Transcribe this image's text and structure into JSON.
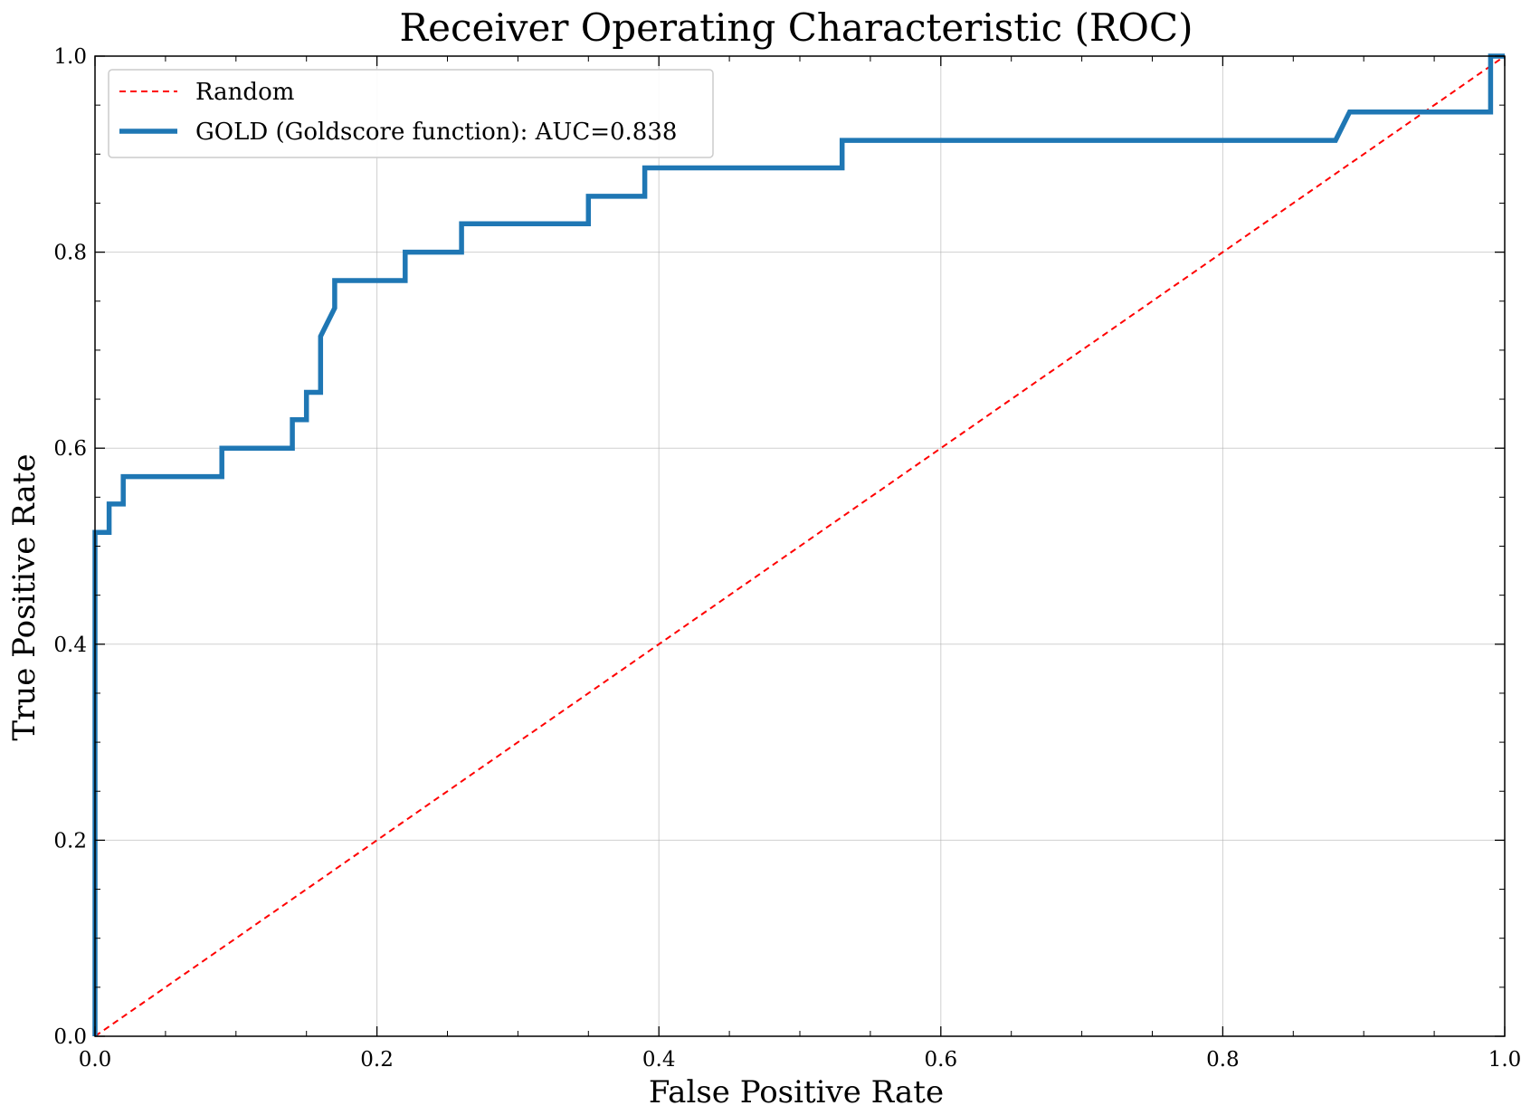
{
  "chart_data": {
    "type": "line",
    "title": "Receiver Operating Characteristic (ROC)",
    "xlabel": "False Positive Rate",
    "ylabel": "True Positive Rate",
    "xlim": [
      0,
      1
    ],
    "ylim": [
      0,
      1
    ],
    "x_ticks": [
      "0.0",
      "0.2",
      "0.4",
      "0.6",
      "0.8",
      "1.0"
    ],
    "y_ticks": [
      "0.0",
      "0.2",
      "0.4",
      "0.6",
      "0.8",
      "1.0"
    ],
    "grid": true,
    "legend_position": "top-left",
    "series": [
      {
        "name": "Random",
        "color": "#ff0000",
        "style": "dashed",
        "x": [
          0,
          1
        ],
        "y": [
          0,
          1
        ]
      },
      {
        "name": "GOLD (Goldscore function): AUC=0.838",
        "color": "#1f77b4",
        "style": "solid",
        "x": [
          0,
          0,
          0.01,
          0.01,
          0.02,
          0.02,
          0.09,
          0.09,
          0.14,
          0.14,
          0.15,
          0.15,
          0.16,
          0.16,
          0.17,
          0.17,
          0.22,
          0.22,
          0.26,
          0.26,
          0.35,
          0.35,
          0.39,
          0.39,
          0.53,
          0.53,
          0.88,
          0.89,
          0.99,
          0.99,
          1.0
        ],
        "y": [
          0,
          0.514,
          0.514,
          0.543,
          0.543,
          0.571,
          0.571,
          0.6,
          0.6,
          0.629,
          0.629,
          0.657,
          0.657,
          0.714,
          0.743,
          0.771,
          0.771,
          0.8,
          0.8,
          0.829,
          0.829,
          0.857,
          0.857,
          0.886,
          0.886,
          0.914,
          0.914,
          0.943,
          0.943,
          1.0,
          1.0
        ]
      }
    ]
  }
}
